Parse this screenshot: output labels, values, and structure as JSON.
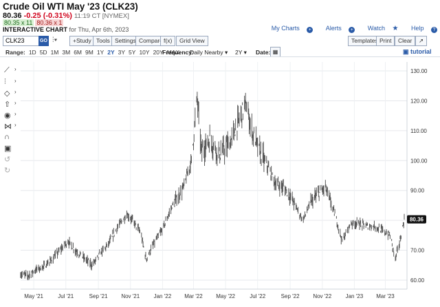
{
  "header": {
    "title": "Crude Oil WTI May '23 (CLK23)",
    "last": "80.36",
    "change": "-0.25 (-0.31%)",
    "time": "11:19 CT [NYMEX]",
    "bid": "80.35 x 11",
    "ask": "80.36 x 1",
    "interactive_label": "INTERACTIVE CHART",
    "interactive_date": "for Thu, Apr 6th, 2023"
  },
  "top_links": {
    "my_charts": "My Charts",
    "alerts": "Alerts",
    "watch": "Watch",
    "help": "Help"
  },
  "toolbar": {
    "symbol": "CLK23",
    "go": "GO",
    "study": "+Study",
    "tools": "Tools",
    "settings": "Settings",
    "compare": "Compare",
    "fx": "f(x)",
    "grid_view": "Grid View",
    "templates": "Templates",
    "print": "Print",
    "clear": "Clear",
    "expand": "↗"
  },
  "range_bar": {
    "label": "Range:",
    "ranges": [
      "1D",
      "5D",
      "1M",
      "3M",
      "6M",
      "9M",
      "1Y",
      "2Y",
      "3Y",
      "5Y",
      "10Y",
      "20Y",
      "MAX"
    ],
    "active_range": "2Y",
    "frequency_label": "Frequency:",
    "frequency_value": "Daily Nearby",
    "period_value": "2Y",
    "date_label": "Date:",
    "tutorial": "tutorial"
  },
  "left_tools": [
    "line-tool-icon",
    "fibonacci-icon",
    "shapes-icon",
    "arrow-up-icon",
    "eye-icon",
    "pattern-icon",
    "magnet-icon",
    "lock-icon",
    "undo-icon",
    "redo-icon"
  ],
  "colors": {
    "accent": "#2a5ba8",
    "negative": "#d0021b",
    "bars": "#555555",
    "last_price_bg": "#111111"
  },
  "chart_data": {
    "type": "line",
    "title": "",
    "xlabel": "",
    "ylabel": "",
    "ylim": [
      57,
      133
    ],
    "y_ticks": [
      60,
      70,
      80,
      90,
      100,
      110,
      120,
      130
    ],
    "y_tick_labels": [
      "60.00",
      "70.00",
      "80.00",
      "90.00",
      "100.00",
      "110.00",
      "120.00",
      "130.00"
    ],
    "x_tick_labels": [
      "May '21",
      "Jul '21",
      "Sep '21",
      "Nov '21",
      "Jan '22",
      "Mar '22",
      "May '22",
      "Jul '22",
      "Sep '22",
      "Nov '22",
      "Jan '23",
      "Mar '23"
    ],
    "last_price_label": "80.36",
    "grid": true,
    "series": [
      {
        "x": [
          "2021-04-06",
          "2021-04-20",
          "2021-05-05",
          "2021-05-20",
          "2021-06-05",
          "2021-06-20",
          "2021-07-05",
          "2021-07-19",
          "2021-08-01",
          "2021-08-20",
          "2021-09-05",
          "2021-09-20",
          "2021-10-05",
          "2021-10-25",
          "2021-11-05",
          "2021-11-20",
          "2021-12-01",
          "2021-12-15",
          "2022-01-01",
          "2022-01-20",
          "2022-02-10",
          "2022-02-25",
          "2022-03-08",
          "2022-03-16",
          "2022-04-01",
          "2022-04-20",
          "2022-05-10",
          "2022-05-25",
          "2022-06-08",
          "2022-06-20",
          "2022-07-05",
          "2022-07-20",
          "2022-08-05",
          "2022-08-20",
          "2022-09-05",
          "2022-09-25",
          "2022-10-10",
          "2022-10-25",
          "2022-11-07",
          "2022-11-25",
          "2022-12-09",
          "2022-12-25",
          "2023-01-10",
          "2023-01-25",
          "2023-02-10",
          "2023-02-28",
          "2023-03-10",
          "2023-03-20",
          "2023-03-30",
          "2023-04-06"
        ],
        "values": [
          62,
          61.5,
          63.5,
          64.5,
          67,
          70,
          73,
          70,
          68,
          65,
          69,
          72,
          77,
          82,
          80,
          76,
          67,
          72,
          77,
          85,
          91,
          100,
          121,
          103,
          107,
          102,
          106,
          113,
          119,
          110,
          103,
          98,
          92,
          91,
          87,
          80,
          86,
          89,
          91,
          82,
          73,
          79,
          79,
          78,
          78,
          76,
          75,
          67,
          74,
          80.36
        ]
      }
    ]
  }
}
